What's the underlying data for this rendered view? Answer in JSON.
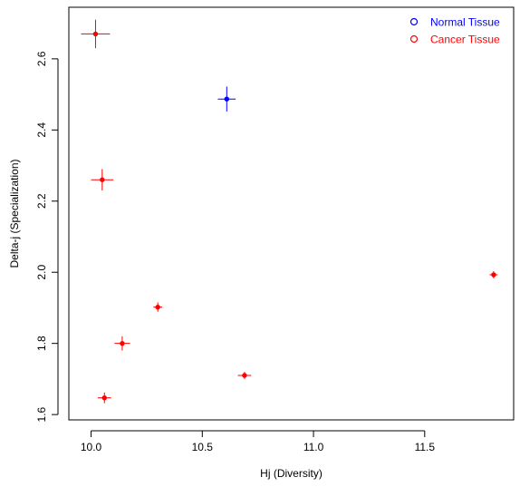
{
  "chart_data": {
    "type": "scatter",
    "xlabel": "Hj (Diversity)",
    "ylabel": "Delta-j (Specialization)",
    "xlim": [
      9.9,
      11.9
    ],
    "ylim": [
      1.585,
      2.745
    ],
    "x_ticks": [
      10.0,
      10.5,
      11.0,
      11.5
    ],
    "x_tick_labels": [
      "10.0",
      "10.5",
      "11.0",
      "11.5"
    ],
    "y_ticks": [
      1.6,
      1.8,
      2.0,
      2.2,
      2.4,
      2.6
    ],
    "y_tick_labels": [
      "1.6",
      "1.8",
      "2.0",
      "2.2",
      "2.4",
      "2.6"
    ],
    "grid": false,
    "legend_position": "top-right",
    "series": [
      {
        "name": "Normal Tissue",
        "color": "#0000ff",
        "points": [
          {
            "x": 10.61,
            "y": 2.487,
            "x_err": 0.04,
            "y_err": 0.035
          }
        ]
      },
      {
        "name": "Cancer Tissue",
        "color": "#ff0000",
        "points": [
          {
            "x": 10.02,
            "y": 2.67,
            "x_err": 0.065,
            "y_err": 0.04
          },
          {
            "x": 10.05,
            "y": 2.26,
            "x_err": 0.05,
            "y_err": 0.03
          },
          {
            "x": 10.3,
            "y": 1.902,
            "x_err": 0.02,
            "y_err": 0.013
          },
          {
            "x": 10.14,
            "y": 1.8,
            "x_err": 0.035,
            "y_err": 0.02
          },
          {
            "x": 10.06,
            "y": 1.647,
            "x_err": 0.03,
            "y_err": 0.015
          },
          {
            "x": 10.69,
            "y": 1.71,
            "x_err": 0.03,
            "y_err": 0.01
          },
          {
            "x": 11.81,
            "y": 1.993,
            "x_err": 0.018,
            "y_err": 0.01
          }
        ]
      }
    ]
  }
}
